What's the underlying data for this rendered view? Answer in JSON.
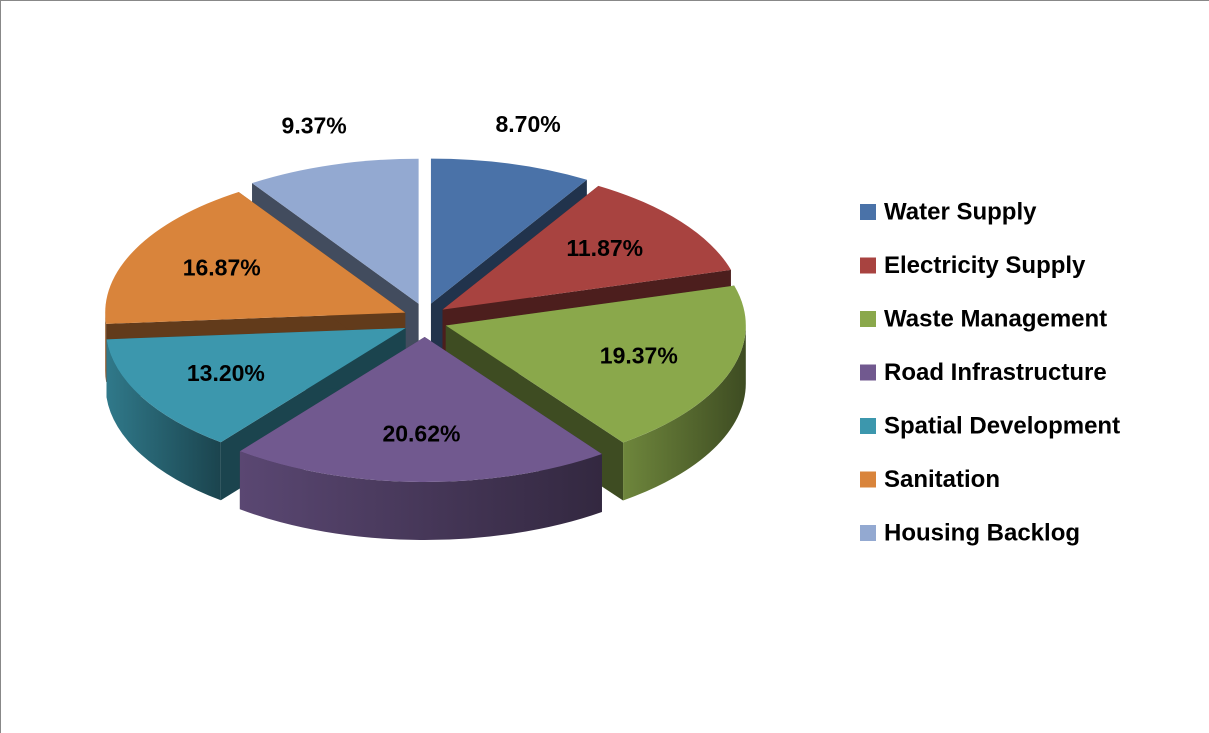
{
  "chart_data": {
    "type": "pie",
    "categories": [
      "Water Supply",
      "Electricity Supply",
      "Waste Management",
      "Road Infrastructure",
      "Spatial Development",
      "Sanitation",
      "Housing Backlog"
    ],
    "values": [
      8.7,
      11.87,
      19.37,
      20.62,
      13.2,
      16.87,
      9.37
    ],
    "value_labels": [
      "8.70%",
      "11.87%",
      "19.37%",
      "20.62%",
      "13.20%",
      "16.87%",
      "9.37%"
    ],
    "colors": [
      "#4a72a8",
      "#a84340",
      "#8aa84b",
      "#71598f",
      "#3c97ad",
      "#d9843b",
      "#93a9d1"
    ],
    "legend": "right"
  }
}
